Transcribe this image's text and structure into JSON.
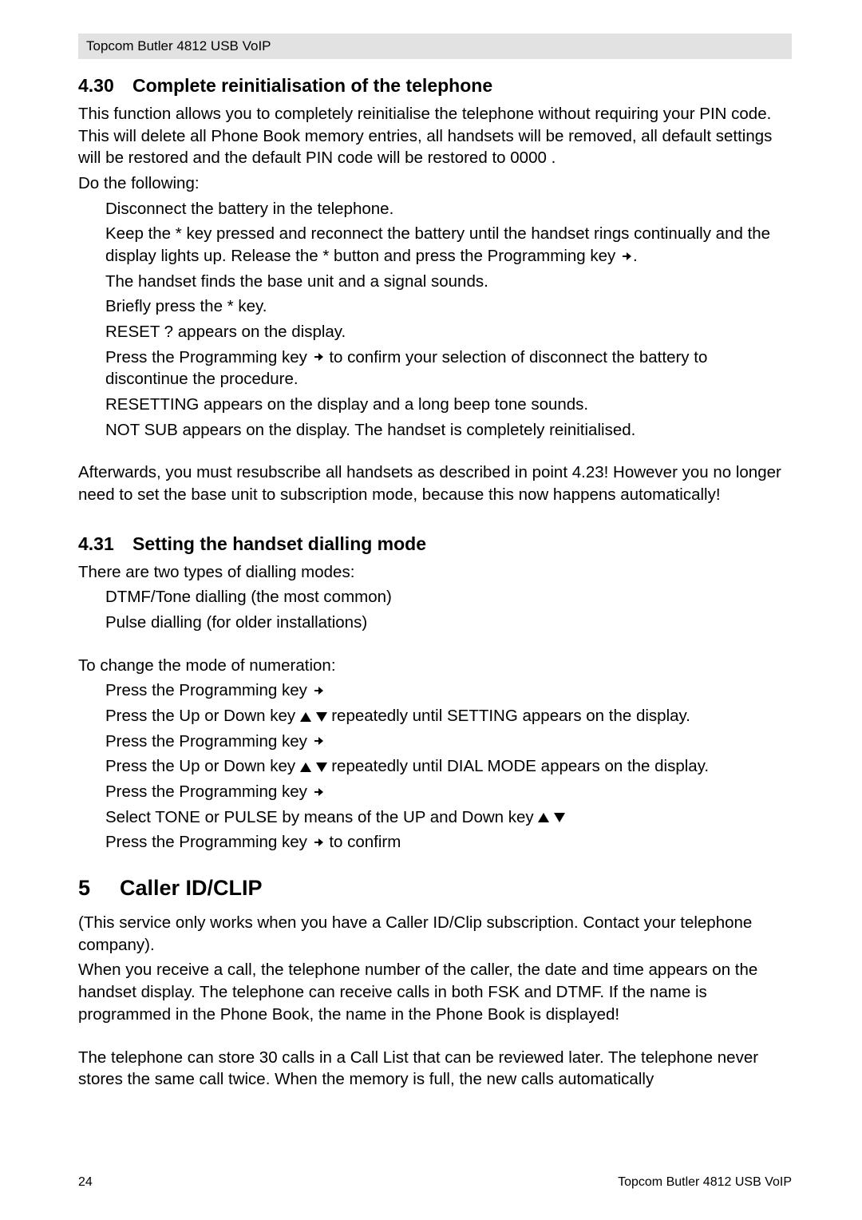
{
  "header": {
    "product": "Topcom Butler 4812 USB VoIP"
  },
  "s430": {
    "num": "4.30",
    "title": "Complete reinitialisation of the telephone",
    "intro1": "This function allows you to completely reinitialise the telephone without requiring your PIN code. This will delete all Phone Book memory entries, all handsets will be removed, all default settings will be restored and the default PIN code will be restored to  0000 .",
    "intro2": "Do the following:",
    "step1": "Disconnect the battery in the telephone.",
    "step2a": "Keep the  *  key pressed and reconnect the battery until the handset rings continually and the display lights up. Release the  *  button and press the Programming key ",
    "step2b": ".",
    "step3": "The handset finds the base unit and a signal sounds.",
    "step4": "Briefly press the  *  key.",
    "step5": " RESET ?  appears on the display.",
    "step6a": "Press the Programming key ",
    "step6b": " to confirm your selection of disconnect the battery to discontinue the procedure.",
    "step7": " RESETTING  appears on the display and a long beep tone sounds.",
    "step8": " NOT SUB  appears on the display. The handset is completely reinitialised.",
    "after": "Afterwards, you must resubscribe all handsets as described in point 4.23! However you no longer need to set the base unit to subscription mode, because this now happens automatically!"
  },
  "s431": {
    "num": "4.31",
    "title": "Setting the handset dialling mode",
    "intro": "There are two types of dialling modes:",
    "m1": "DTMF/Tone dialling (the most common)",
    "m2": "Pulse dialling (for older installations)",
    "change": "To change the mode of numeration:",
    "c1a": "Press the Programming key ",
    "c2a": "Press the Up or Down key ",
    "c2b": " repeatedly until  SETTING  appears on the display.",
    "c3a": "Press the Programming key ",
    "c4a": "Press the Up or Down key ",
    "c4b": " repeatedly until  DIAL MODE  appears on the display.",
    "c5a": "Press the Programming key ",
    "c6a": "Select  TONE  or  PULSE  by means of the UP and Down key ",
    "c7a": "Press the Programming key ",
    "c7b": " to confirm"
  },
  "s5": {
    "num": "5",
    "title": "Caller ID/CLIP",
    "p1": "(This service only works when you have a Caller ID/Clip subscription. Contact your telephone company).",
    "p2": "When you receive a call, the telephone number of the caller, the date and time appears on the handset display. The telephone can receive calls in both FSK and DTMF. If the name is programmed in the Phone Book, the name in the Phone Book is displayed!",
    "p3": "The telephone can store 30 calls in a Call List that can be reviewed later. The telephone never stores the same call twice. When the memory is full, the new calls automatically"
  },
  "footer": {
    "page": "24",
    "product": "Topcom Butler 4812 USB VoIP"
  }
}
